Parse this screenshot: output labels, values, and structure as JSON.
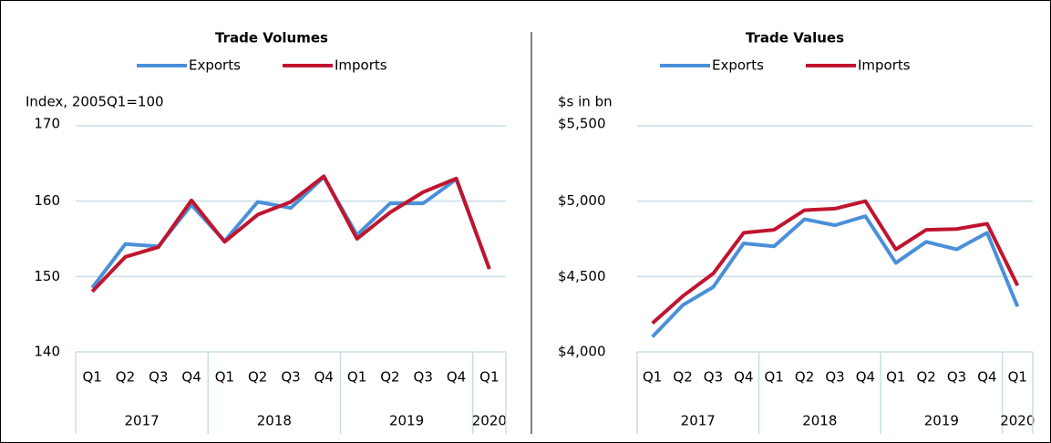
{
  "chart_data": [
    {
      "type": "line",
      "title": "Trade Volumes",
      "y_label": "Index, 2005Q1=100",
      "categories": [
        "Q1",
        "Q2",
        "Q3",
        "Q4",
        "Q1",
        "Q2",
        "Q3",
        "Q4",
        "Q1",
        "Q2",
        "Q3",
        "Q4",
        "Q1"
      ],
      "x_groups": [
        {
          "label": "2017",
          "count": 4
        },
        {
          "label": "2018",
          "count": 4
        },
        {
          "label": "2019",
          "count": 4
        },
        {
          "label": "2020",
          "count": 1
        }
      ],
      "series": [
        {
          "name": "Exports",
          "color": "#4a90d9",
          "values": [
            148.5,
            154.3,
            154.0,
            159.5,
            154.7,
            159.9,
            159.1,
            163.2,
            155.5,
            159.7,
            159.7,
            162.9,
            151.0
          ]
        },
        {
          "name": "Imports",
          "color": "#c0152f",
          "values": [
            148.0,
            152.6,
            153.9,
            160.1,
            154.6,
            158.2,
            159.9,
            163.3,
            155.0,
            158.5,
            161.2,
            163.0,
            151.0
          ]
        }
      ],
      "ylim": [
        140,
        170
      ],
      "yticks": [
        140,
        150,
        160,
        170
      ],
      "grid": true,
      "legend": "top"
    },
    {
      "type": "line",
      "title": "Trade Values",
      "y_label": "$s in bn",
      "categories": [
        "Q1",
        "Q2",
        "Q3",
        "Q4",
        "Q1",
        "Q2",
        "Q3",
        "Q4",
        "Q1",
        "Q2",
        "Q3",
        "Q4",
        "Q1"
      ],
      "x_groups": [
        {
          "label": "2017",
          "count": 4
        },
        {
          "label": "2018",
          "count": 4
        },
        {
          "label": "2019",
          "count": 4
        },
        {
          "label": "2020",
          "count": 1
        }
      ],
      "series": [
        {
          "name": "Exports",
          "color": "#4a90d9",
          "values": [
            4100,
            4310,
            4430,
            4720,
            4700,
            4880,
            4840,
            4900,
            4590,
            4730,
            4680,
            4790,
            4300
          ]
        },
        {
          "name": "Imports",
          "color": "#c0152f",
          "values": [
            4190,
            4370,
            4520,
            4790,
            4810,
            4940,
            4950,
            5000,
            4680,
            4810,
            4815,
            4850,
            4440
          ]
        }
      ],
      "ylim": [
        4000,
        5500
      ],
      "yticks": [
        {
          "value": 4000,
          "label": "$4,000"
        },
        {
          "value": 4500,
          "label": "$4,500"
        },
        {
          "value": 5000,
          "label": "$5,000"
        },
        {
          "value": 5500,
          "label": "$5,500"
        }
      ],
      "grid": true,
      "legend": "top"
    }
  ]
}
